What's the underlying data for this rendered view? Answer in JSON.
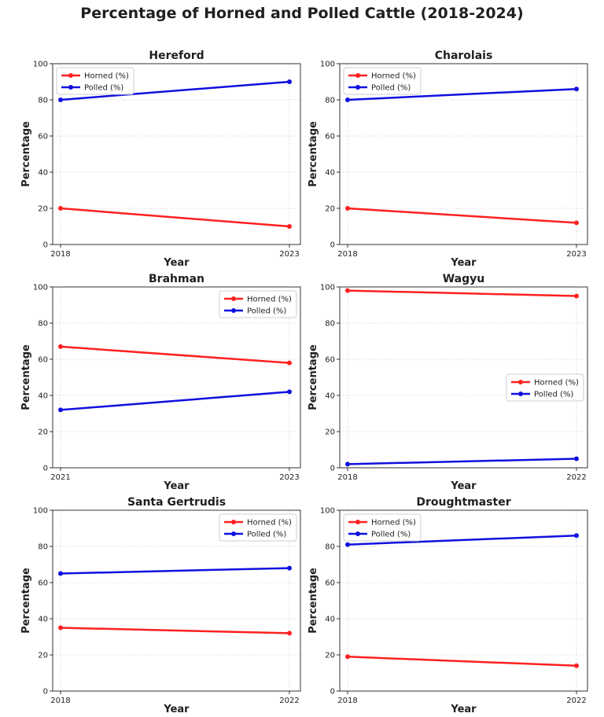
{
  "title": "Percentage of Horned and Polled Cattle (2018-2024)",
  "colors": {
    "horned": "#ff2020",
    "polled": "#1010e0",
    "grid": "#d8d8d8"
  },
  "chart_data": [
    {
      "type": "line",
      "title": "Hereford",
      "x": [
        "2018",
        "2023"
      ],
      "xlabel": "Year",
      "ylabel": "Percentage",
      "ylim": [
        0,
        100
      ],
      "yticks": [
        0,
        20,
        40,
        60,
        80,
        100
      ],
      "grid": true,
      "legend": "top-left",
      "series": [
        {
          "name": "Horned (%)",
          "values": [
            20,
            10
          ]
        },
        {
          "name": "Polled (%)",
          "values": [
            80,
            90
          ]
        }
      ]
    },
    {
      "type": "line",
      "title": "Charolais",
      "x": [
        "2018",
        "2023"
      ],
      "xlabel": "Year",
      "ylabel": "Percentage",
      "ylim": [
        0,
        100
      ],
      "yticks": [
        0,
        20,
        40,
        60,
        80,
        100
      ],
      "grid": true,
      "legend": "top-left",
      "series": [
        {
          "name": "Horned (%)",
          "values": [
            20,
            12
          ]
        },
        {
          "name": "Polled (%)",
          "values": [
            80,
            86
          ]
        }
      ]
    },
    {
      "type": "line",
      "title": "Brahman",
      "x": [
        "2021",
        "2023"
      ],
      "xlabel": "Year",
      "ylabel": "Percentage",
      "ylim": [
        0,
        100
      ],
      "yticks": [
        0,
        20,
        40,
        60,
        80,
        100
      ],
      "grid": true,
      "legend": "top-right",
      "series": [
        {
          "name": "Horned (%)",
          "values": [
            67,
            58
          ]
        },
        {
          "name": "Polled (%)",
          "values": [
            32,
            42
          ]
        }
      ]
    },
    {
      "type": "line",
      "title": "Wagyu",
      "x": [
        "2018",
        "2022"
      ],
      "xlabel": "Year",
      "ylabel": "Percentage",
      "ylim": [
        0,
        100
      ],
      "yticks": [
        0,
        20,
        40,
        60,
        80,
        100
      ],
      "grid": true,
      "legend": "center-right",
      "series": [
        {
          "name": "Horned (%)",
          "values": [
            98,
            95
          ]
        },
        {
          "name": "Polled (%)",
          "values": [
            2,
            5
          ]
        }
      ]
    },
    {
      "type": "line",
      "title": "Santa Gertrudis",
      "x": [
        "2018",
        "2022"
      ],
      "xlabel": "Year",
      "ylabel": "Percentage",
      "ylim": [
        0,
        100
      ],
      "yticks": [
        0,
        20,
        40,
        60,
        80,
        100
      ],
      "grid": true,
      "legend": "top-right",
      "series": [
        {
          "name": "Horned (%)",
          "values": [
            35,
            32
          ]
        },
        {
          "name": "Polled (%)",
          "values": [
            65,
            68
          ]
        }
      ]
    },
    {
      "type": "line",
      "title": "Droughtmaster",
      "x": [
        "2018",
        "2022"
      ],
      "xlabel": "Year",
      "ylabel": "Percentage",
      "ylim": [
        0,
        100
      ],
      "yticks": [
        0,
        20,
        40,
        60,
        80,
        100
      ],
      "grid": true,
      "legend": "top-left",
      "series": [
        {
          "name": "Horned (%)",
          "values": [
            19,
            14
          ]
        },
        {
          "name": "Polled (%)",
          "values": [
            81,
            86
          ]
        }
      ]
    }
  ]
}
